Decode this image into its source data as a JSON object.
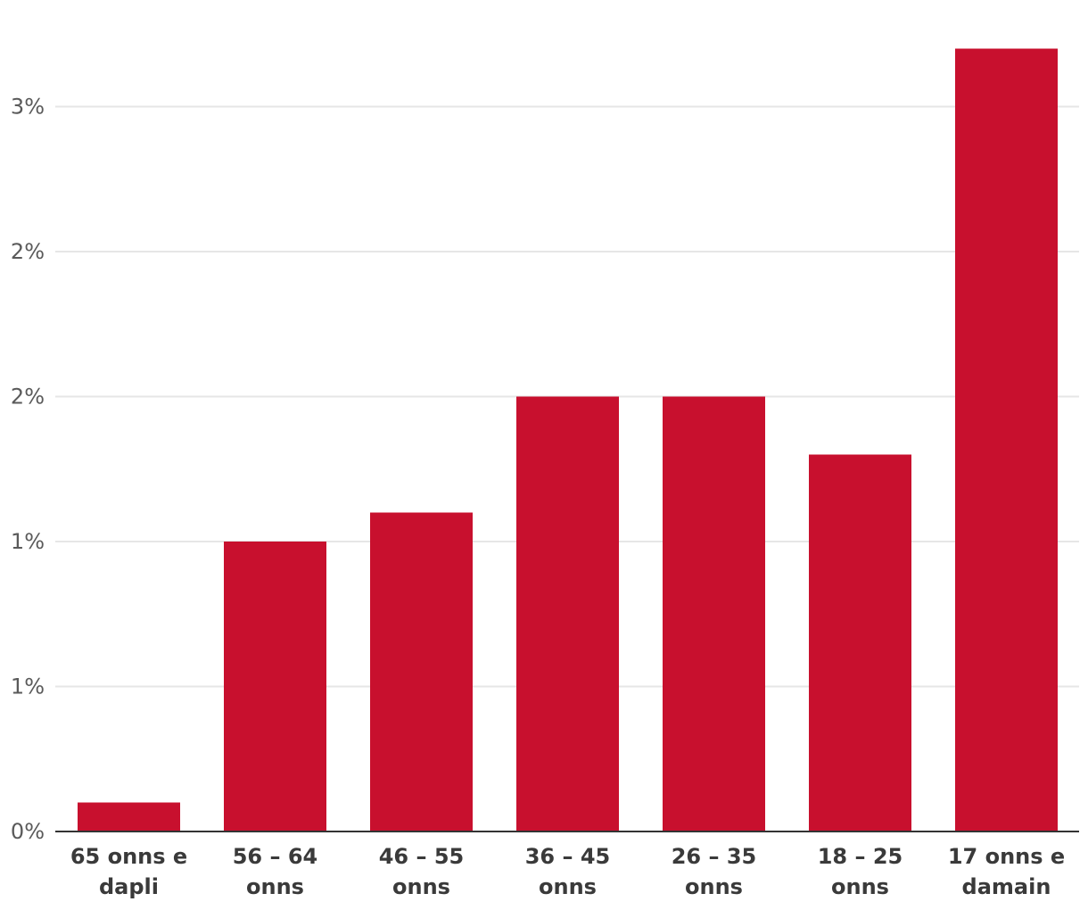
{
  "chart_data": {
    "type": "bar",
    "categories": [
      [
        "65 onns e",
        "dapli"
      ],
      [
        "56 – 64",
        "onns"
      ],
      [
        "46 – 55",
        "onns"
      ],
      [
        "36 – 45",
        "onns"
      ],
      [
        "26 – 35",
        "onns"
      ],
      [
        "18 – 25",
        "onns"
      ],
      [
        "17 onns e",
        "damain"
      ]
    ],
    "values": [
      0.1,
      1.0,
      1.1,
      1.5,
      1.5,
      1.3,
      2.7
    ],
    "yticks": [
      0,
      0.5,
      1.0,
      1.5,
      2.0,
      2.5
    ],
    "ytick_labels": [
      "0%",
      "1%",
      "1%",
      "2%",
      "2%",
      "3%"
    ],
    "ylim": [
      0,
      2.8
    ],
    "grid": true,
    "bar_color": "#c8102e",
    "grid_color": "#e6e6e6",
    "axis_color": "#333333"
  }
}
